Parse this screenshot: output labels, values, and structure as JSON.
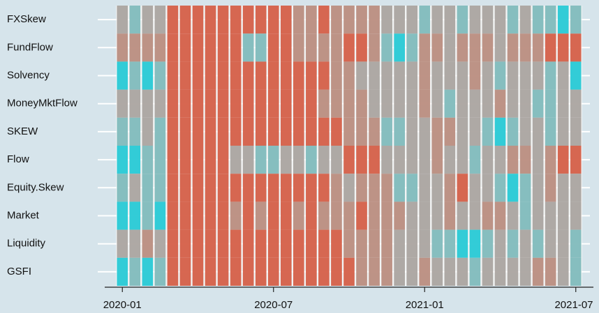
{
  "chart_data": {
    "type": "heatmap",
    "x": [
      0,
      0.5,
      1,
      1.5,
      2,
      2.5,
      3,
      3.5,
      4,
      4.5,
      5,
      5.5,
      6,
      6.5,
      7,
      7.5,
      8,
      8.5,
      9,
      9.5,
      10,
      10.5,
      11,
      11.5,
      12,
      12.5,
      13,
      13.5,
      14,
      14.5,
      15,
      15.5,
      16,
      16.5,
      17,
      17.5,
      18
    ],
    "xlim": [
      -0.7,
      18.7
    ],
    "xticks": [
      {
        "value": 0,
        "label": "2020-01"
      },
      {
        "value": 6,
        "label": "2020-07"
      },
      {
        "value": 12,
        "label": "2021-01"
      },
      {
        "value": 18,
        "label": "2021-07"
      }
    ],
    "palette": [
      "#22c8d4",
      "#7db8ba",
      "#a8a29d",
      "#b98a7c",
      "#d45a42"
    ],
    "series": [
      {
        "name": "FXSkew",
        "values": [
          2,
          1,
          2,
          2,
          4,
          4,
          4,
          4,
          4,
          4,
          4,
          4,
          4,
          4,
          3,
          3,
          4,
          3,
          3,
          3,
          3,
          2,
          2,
          2,
          1,
          2,
          2,
          1,
          2,
          2,
          2,
          1,
          2,
          1,
          1,
          0,
          1
        ]
      },
      {
        "name": "FundFlow",
        "values": [
          3,
          3,
          3,
          3,
          4,
          4,
          4,
          4,
          4,
          4,
          1,
          1,
          4,
          4,
          3,
          3,
          3,
          3,
          4,
          4,
          3,
          1,
          0,
          1,
          3,
          3,
          2,
          3,
          3,
          3,
          2,
          3,
          3,
          3,
          4,
          4,
          4
        ]
      },
      {
        "name": "Solvency",
        "values": [
          0,
          1,
          0,
          1,
          4,
          4,
          4,
          4,
          4,
          4,
          4,
          4,
          4,
          4,
          4,
          4,
          4,
          3,
          3,
          2,
          2,
          2,
          2,
          2,
          3,
          2,
          2,
          2,
          3,
          2,
          1,
          2,
          2,
          2,
          1,
          2,
          0
        ]
      },
      {
        "name": "MoneyMktFlow",
        "values": [
          2,
          2,
          2,
          2,
          4,
          4,
          4,
          4,
          4,
          4,
          4,
          4,
          4,
          4,
          4,
          4,
          3,
          3,
          3,
          3,
          2,
          2,
          2,
          2,
          3,
          2,
          1,
          2,
          2,
          2,
          3,
          2,
          2,
          1,
          1,
          2,
          2
        ]
      },
      {
        "name": "SKEW",
        "values": [
          1,
          1,
          2,
          1,
          4,
          4,
          4,
          4,
          4,
          4,
          4,
          4,
          4,
          4,
          4,
          4,
          4,
          4,
          3,
          3,
          3,
          1,
          1,
          2,
          2,
          3,
          3,
          2,
          2,
          1,
          0,
          1,
          2,
          2,
          1,
          2,
          2
        ]
      },
      {
        "name": "Flow",
        "values": [
          0,
          0,
          1,
          1,
          4,
          4,
          4,
          4,
          4,
          2,
          2,
          1,
          1,
          2,
          2,
          1,
          2,
          2,
          4,
          4,
          4,
          2,
          2,
          2,
          2,
          3,
          2,
          2,
          1,
          2,
          2,
          3,
          3,
          2,
          3,
          4,
          4
        ]
      },
      {
        "name": "Equity.Skew",
        "values": [
          1,
          2,
          1,
          1,
          4,
          4,
          4,
          4,
          4,
          4,
          4,
          4,
          4,
          4,
          4,
          4,
          4,
          3,
          2,
          3,
          3,
          3,
          1,
          1,
          2,
          2,
          3,
          4,
          2,
          2,
          1,
          0,
          1,
          2,
          3,
          2,
          2
        ]
      },
      {
        "name": "Market",
        "values": [
          0,
          0,
          1,
          0,
          4,
          4,
          4,
          4,
          4,
          3,
          4,
          3,
          4,
          4,
          3,
          4,
          3,
          3,
          3,
          4,
          3,
          3,
          3,
          2,
          2,
          2,
          3,
          2,
          2,
          3,
          3,
          2,
          1,
          2,
          2,
          2,
          2
        ]
      },
      {
        "name": "Liquidity",
        "values": [
          2,
          2,
          3,
          2,
          4,
          4,
          4,
          4,
          4,
          4,
          4,
          4,
          4,
          4,
          4,
          4,
          4,
          4,
          3,
          3,
          3,
          3,
          2,
          2,
          2,
          1,
          1,
          0,
          0,
          1,
          2,
          1,
          2,
          1,
          2,
          2,
          1
        ]
      },
      {
        "name": "GSFI",
        "values": [
          0,
          1,
          0,
          1,
          4,
          4,
          4,
          4,
          4,
          4,
          4,
          4,
          4,
          4,
          4,
          4,
          4,
          4,
          4,
          3,
          3,
          3,
          2,
          2,
          3,
          2,
          2,
          2,
          1,
          2,
          2,
          2,
          2,
          3,
          3,
          2,
          1
        ]
      }
    ]
  }
}
